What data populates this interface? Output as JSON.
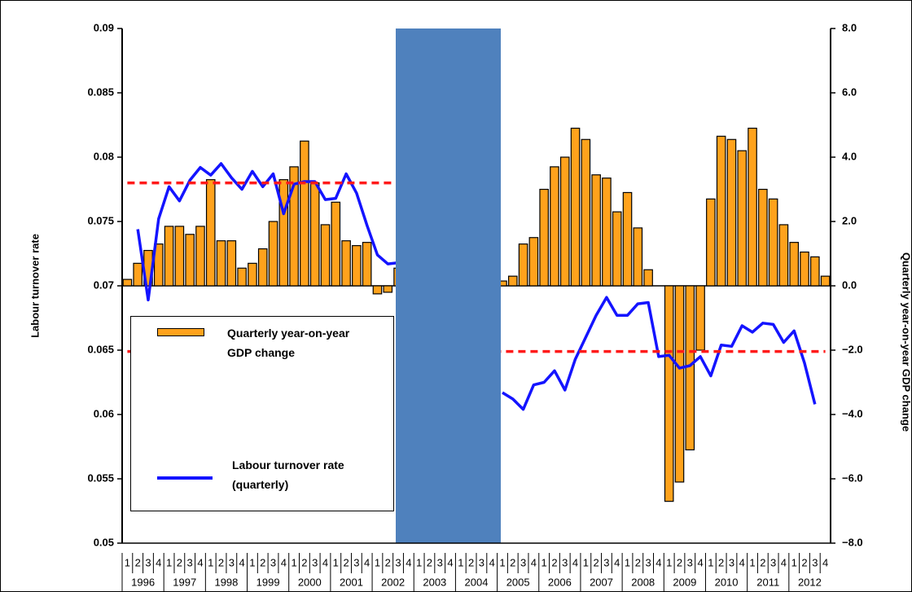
{
  "chart_data": {
    "type": "bar-line",
    "y_label": "Labour turnover rate",
    "y2_label": "Quarterly year-on-year GDP change",
    "years": [
      "1996",
      "1997",
      "1998",
      "1999",
      "2000",
      "2001",
      "2002",
      "2003",
      "2004",
      "2005",
      "2006",
      "2007",
      "2008",
      "2009",
      "2010",
      "2011",
      "2012"
    ],
    "quarter_labels": [
      "1",
      "2",
      "3",
      "4"
    ],
    "ylim": [
      0.05,
      0.09
    ],
    "yticks": [
      0.05,
      0.055,
      0.06,
      0.065,
      0.07,
      0.075,
      0.08,
      0.085,
      0.09
    ],
    "y2lim": [
      -8,
      8
    ],
    "y2ticks": [
      {
        "value": -8,
        "label": "−8.0"
      },
      {
        "value": -6,
        "label": "−6.0"
      },
      {
        "value": -4,
        "label": "−4.0"
      },
      {
        "value": -2,
        "label": "−2.0"
      },
      {
        "value": 0,
        "label": "0.0"
      },
      {
        "value": 2,
        "label": "2.0"
      },
      {
        "value": 4,
        "label": "4.0"
      },
      {
        "value": 6,
        "label": "6.0"
      },
      {
        "value": 8,
        "label": "8.0"
      }
    ],
    "series": [
      {
        "name": "Quarterly year-on-year GDP change",
        "kind": "bar",
        "axis": "y2",
        "color": "#ffa21c",
        "values": [
          0.2,
          0.7,
          1.1,
          1.3,
          1.85,
          1.85,
          1.6,
          1.85,
          3.3,
          1.4,
          1.4,
          0.55,
          0.7,
          1.15,
          2.0,
          3.3,
          3.7,
          4.5,
          3.2,
          1.9,
          2.6,
          1.4,
          1.25,
          1.35,
          -0.25,
          -0.2,
          0.55,
          null,
          null,
          null,
          null,
          null,
          null,
          null,
          null,
          null,
          0.15,
          0.3,
          1.3,
          1.5,
          3.0,
          3.7,
          4.0,
          4.9,
          4.55,
          3.45,
          3.35,
          2.3,
          2.9,
          1.8,
          0.5,
          0,
          -6.7,
          -6.1,
          -5.1,
          -2.0,
          2.7,
          4.65,
          4.55,
          4.2,
          4.9,
          3.0,
          2.7,
          1.9,
          1.35,
          1.05,
          0.9,
          0.3
        ]
      },
      {
        "name": "Labour turnover rate (quarterly)",
        "kind": "line",
        "color": "#1414ff",
        "values": [
          null,
          0.0744,
          0.0689,
          0.0752,
          0.0777,
          0.0766,
          0.0782,
          0.0792,
          0.0786,
          0.0795,
          0.0784,
          0.0775,
          0.0789,
          0.0777,
          0.0787,
          0.0756,
          0.0779,
          0.0781,
          0.0781,
          0.0767,
          0.0768,
          0.0787,
          0.0772,
          0.0747,
          0.0724,
          0.0717,
          0.0718,
          null,
          null,
          null,
          null,
          null,
          null,
          null,
          null,
          null,
          0.0617,
          0.0612,
          0.0604,
          0.0623,
          0.0625,
          0.0634,
          0.0619,
          0.0643,
          0.066,
          0.0677,
          0.0691,
          0.0677,
          0.0677,
          0.0686,
          0.0687,
          0.0645,
          0.0646,
          0.0636,
          0.0638,
          0.0645,
          0.063,
          0.0654,
          0.0653,
          0.0669,
          0.0664,
          0.0671,
          0.067,
          0.0656,
          0.0665,
          0.064,
          0.0608,
          null
        ]
      },
      {
        "kind": "dashed",
        "color": "#ff1a1a",
        "values": [
          0.078,
          0.078,
          0.078,
          0.078,
          0.078,
          0.078,
          0.078,
          0.078,
          0.078,
          0.078,
          0.078,
          0.078,
          0.078,
          0.078,
          0.078,
          0.078,
          0.078,
          0.078,
          0.078,
          0.078,
          0.078,
          0.078,
          0.078,
          0.078,
          0.078,
          0.078,
          0.078,
          null,
          null,
          null,
          null,
          null,
          null,
          null,
          null,
          null,
          null,
          null,
          null,
          null,
          null,
          null,
          null,
          null,
          null,
          null,
          null,
          null,
          null,
          null,
          null,
          null,
          null,
          null,
          null,
          null,
          null,
          null,
          null,
          null,
          null,
          null,
          null,
          null,
          null,
          null,
          null,
          null
        ]
      },
      {
        "kind": "dashed",
        "color": "#ff1a1a",
        "values": [
          0.0649,
          0.0649,
          0.0649,
          0.0649,
          0.0649,
          0.0649,
          0.0649,
          0.0649,
          0.0649,
          0.0649,
          0.0649,
          0.0649,
          0.0649,
          0.0649,
          0.0649,
          0.0649,
          0.0649,
          0.0649,
          0.0649,
          0.0649,
          0.0649,
          0.0649,
          0.0649,
          0.0649,
          0.0649,
          0.0649,
          0.0649,
          0.0649,
          0.0649,
          0.0649,
          0.0649,
          0.0649,
          0.0649,
          0.0649,
          0.0649,
          0.0649,
          0.0649,
          0.0649,
          0.0649,
          0.0649,
          0.0649,
          0.0649,
          0.0649,
          0.0649,
          0.0649,
          0.0649,
          0.0649,
          0.0649,
          0.0649,
          0.0649,
          0.0649,
          0.0649,
          0.0649,
          0.0649,
          0.0649,
          0.0649,
          0.0649,
          0.0649,
          0.0649,
          0.0649,
          0.0649,
          0.0649,
          0.0649,
          0.0649,
          0.0649,
          0.0649,
          0.0649,
          0.0649
        ]
      }
    ]
  }
}
